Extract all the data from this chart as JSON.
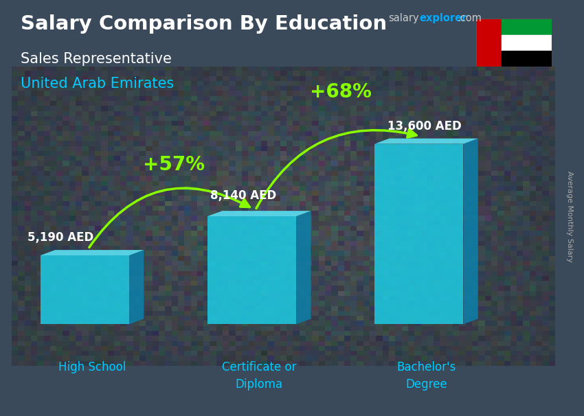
{
  "title_main": "Salary Comparison By Education",
  "subtitle_job": "Sales Representative",
  "subtitle_country": "United Arab Emirates",
  "ylabel": "Average Monthly Salary",
  "categories": [
    "High School",
    "Certificate or\nDiploma",
    "Bachelor's\nDegree"
  ],
  "values": [
    5190,
    8140,
    13600
  ],
  "value_labels": [
    "5,190 AED",
    "8,140 AED",
    "13,600 AED"
  ],
  "pct_labels": [
    "+57%",
    "+68%"
  ],
  "bar_front_color": "#1ec8e0",
  "bar_side_color": "#0d7fa8",
  "bar_top_color": "#5addf0",
  "arrow_color": "#88ff00",
  "pct_color": "#88ff00",
  "title_color": "#ffffff",
  "subtitle_job_color": "#ffffff",
  "subtitle_country_color": "#00ccff",
  "value_label_color": "#ffffff",
  "cat_label_color": "#00ccff",
  "bg_color": "#3a4a5a",
  "ylabel_color": "#aaaaaa",
  "salary_text_color": "#cccccc",
  "explorer_text_color": "#00aaff",
  "com_text_color": "#cccccc",
  "flag_red": "#cc0000",
  "flag_green": "#009933",
  "flag_white": "#ffffff",
  "flag_black": "#000000",
  "x_positions": [
    0.9,
    2.5,
    4.1
  ],
  "bar_width": 0.85,
  "bar_depth": 0.14,
  "y_scale_max": 2.8,
  "max_value": 13600,
  "ylim_min": -0.65,
  "ylim_max": 4.0,
  "xlim_min": 0.2,
  "xlim_max": 5.4
}
